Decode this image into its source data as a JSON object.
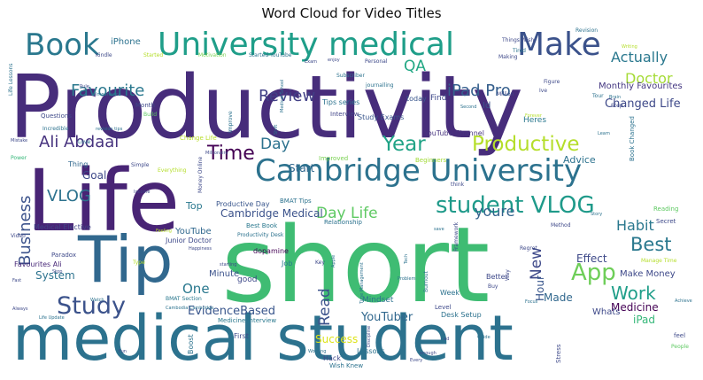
{
  "chart_data": {
    "type": "wordcloud",
    "title": "Word Cloud for Video Titles",
    "colormap": "viridis",
    "background": "#ffffff",
    "words": [
      {
        "text": "short",
        "weight": 100,
        "color": "#3fbc73"
      },
      {
        "text": "Productivity",
        "weight": 88,
        "color": "#472d7b"
      },
      {
        "text": "medical student",
        "weight": 66,
        "color": "#2c728e"
      },
      {
        "text": "Life",
        "weight": 66,
        "color": "#482475"
      },
      {
        "text": "Tip",
        "weight": 50,
        "color": "#31688e"
      },
      {
        "text": "University medical",
        "weight": 34,
        "color": "#1f9e89"
      },
      {
        "text": "Make",
        "weight": 34,
        "color": "#3b528b"
      },
      {
        "text": "Book",
        "weight": 33,
        "color": "#2a788e"
      },
      {
        "text": "Cambridge University",
        "weight": 34,
        "color": "#2c728e"
      },
      {
        "text": "student VLOG",
        "weight": 28,
        "color": "#1f9a8a"
      },
      {
        "text": "Study",
        "weight": 26,
        "color": "#3b528b"
      },
      {
        "text": "App",
        "weight": 25,
        "color": "#6ece58"
      },
      {
        "text": "Productive",
        "weight": 23,
        "color": "#b5de2b"
      },
      {
        "text": "Year",
        "weight": 23,
        "color": "#20a386"
      },
      {
        "text": "Time",
        "weight": 22,
        "color": "#440154"
      },
      {
        "text": "Best",
        "weight": 21,
        "color": "#2a788e"
      },
      {
        "text": "Work",
        "weight": 20,
        "color": "#1f9e89"
      },
      {
        "text": "Ali Abdaal",
        "weight": 18,
        "color": "#46327e"
      },
      {
        "text": "Business",
        "weight": 18,
        "color": "#3b528b"
      },
      {
        "text": "VLOG",
        "weight": 17,
        "color": "#2c728e"
      },
      {
        "text": "iPad Pro",
        "weight": 17,
        "color": "#355f8d"
      },
      {
        "text": "Favourite",
        "weight": 17,
        "color": "#2a788e"
      },
      {
        "text": "Review",
        "weight": 17,
        "color": "#424086"
      },
      {
        "text": "QA",
        "weight": 16,
        "color": "#22a884"
      },
      {
        "text": "Actually",
        "weight": 15,
        "color": "#2a788e"
      },
      {
        "text": "Doctor",
        "weight": 15,
        "color": "#a5db36"
      },
      {
        "text": "Habit",
        "weight": 16,
        "color": "#2a788e"
      },
      {
        "text": "Read",
        "weight": 17,
        "color": "#3b528b"
      },
      {
        "text": "New",
        "weight": 17,
        "color": "#3e4989"
      },
      {
        "text": "Day Life",
        "weight": 17,
        "color": "#5ec962"
      },
      {
        "text": "Day",
        "weight": 16,
        "color": "#2c728e"
      },
      {
        "text": "youre",
        "weight": 15,
        "color": "#33638d"
      },
      {
        "text": "One",
        "weight": 15,
        "color": "#2a788e"
      },
      {
        "text": "Changed Life",
        "weight": 13,
        "color": "#3e4989"
      },
      {
        "text": "Cambridge Medical",
        "weight": 12,
        "color": "#3b528b"
      },
      {
        "text": "EvidenceBased",
        "weight": 13,
        "color": "#39568c"
      },
      {
        "text": "YouTuber",
        "weight": 13,
        "color": "#31688e"
      },
      {
        "text": "Medicine",
        "weight": 12,
        "color": "#440154"
      },
      {
        "text": "Success",
        "weight": 12,
        "color": "#dde318"
      },
      {
        "text": "Effect",
        "weight": 12,
        "color": "#3e4989"
      },
      {
        "text": "Start",
        "weight": 12,
        "color": "#31688e"
      },
      {
        "text": "Goal",
        "weight": 12,
        "color": "#3e4989"
      },
      {
        "text": "System",
        "weight": 12,
        "color": "#2c728e"
      },
      {
        "text": "Hour",
        "weight": 12,
        "color": "#39568c"
      },
      {
        "text": "Made",
        "weight": 12,
        "color": "#31688e"
      },
      {
        "text": "iPad",
        "weight": 12,
        "color": "#35b779"
      },
      {
        "text": "Advice",
        "weight": 11,
        "color": "#2c728e"
      },
      {
        "text": "Monthly Favourites",
        "weight": 10,
        "color": "#453882"
      },
      {
        "text": "Make Money",
        "weight": 10,
        "color": "#3e4989"
      },
      {
        "text": "YouTube",
        "weight": 10,
        "color": "#31688e"
      },
      {
        "text": "Top",
        "weight": 11,
        "color": "#2a788e"
      },
      {
        "text": "Minute",
        "weight": 10,
        "color": "#3b528b"
      },
      {
        "text": "iPhone",
        "weight": 10,
        "color": "#2c728e"
      },
      {
        "text": "Tips series",
        "weight": 8,
        "color": "#2c728e"
      },
      {
        "text": "Study Exams",
        "weight": 8,
        "color": "#39568c"
      },
      {
        "text": "Interview",
        "weight": 7,
        "color": "#414487"
      },
      {
        "text": "YouTube Channel",
        "weight": 8,
        "color": "#46327e"
      },
      {
        "text": "Find",
        "weight": 9,
        "color": "#3e4989"
      },
      {
        "text": "Id",
        "weight": 10,
        "color": "#3b528b"
      },
      {
        "text": "Heres",
        "weight": 9,
        "color": "#2a788e"
      },
      {
        "text": "today",
        "weight": 8,
        "color": "#39568c"
      },
      {
        "text": "Thing",
        "weight": 8,
        "color": "#31688e"
      },
      {
        "text": "Improved",
        "weight": 7,
        "color": "#7ad151"
      },
      {
        "text": "Beginners",
        "weight": 7,
        "color": "#a2da37"
      },
      {
        "text": "Productive Day",
        "weight": 8,
        "color": "#39568c"
      },
      {
        "text": "BMAT Tips",
        "weight": 7,
        "color": "#2c728e"
      },
      {
        "text": "Best Book",
        "weight": 7,
        "color": "#2a788e"
      },
      {
        "text": "Productivity Desk",
        "weight": 6,
        "color": "#2c728e"
      },
      {
        "text": "Junior Doctor",
        "weight": 8,
        "color": "#3e4989"
      },
      {
        "text": "Medical Elective",
        "weight": 8,
        "color": "#414487"
      },
      {
        "text": "Paradox",
        "weight": 7,
        "color": "#3e4989"
      },
      {
        "text": "Favourites Ali",
        "weight": 8,
        "color": "#482878"
      },
      {
        "text": "Relationship",
        "weight": 7,
        "color": "#2c728e"
      },
      {
        "text": "dopamine",
        "weight": 8,
        "color": "#440154"
      },
      {
        "text": "Job",
        "weight": 8,
        "color": "#2a788e"
      },
      {
        "text": "good",
        "weight": 9,
        "color": "#3e4989"
      },
      {
        "text": "Mindset",
        "weight": 9,
        "color": "#2c728e"
      },
      {
        "text": "Desk Setup",
        "weight": 8,
        "color": "#2c728e"
      },
      {
        "text": "Whats",
        "weight": 10,
        "color": "#3e4989"
      },
      {
        "text": "Medicine Interview",
        "weight": 7,
        "color": "#2a788e"
      },
      {
        "text": "First",
        "weight": 8,
        "color": "#3e4989"
      },
      {
        "text": "Hack",
        "weight": 8,
        "color": "#3e4989"
      },
      {
        "text": "Lessons",
        "weight": 8,
        "color": "#2c728e"
      },
      {
        "text": "Wish Knew",
        "weight": 7,
        "color": "#2c728e"
      },
      {
        "text": "Boost",
        "weight": 8,
        "color": "#2c728e"
      },
      {
        "text": "BMAT Section",
        "weight": 6,
        "color": "#2a788e"
      },
      {
        "text": "Better",
        "weight": 8,
        "color": "#3e4989"
      },
      {
        "text": "Week",
        "weight": 8,
        "color": "#2c728e"
      },
      {
        "text": "Level",
        "weight": 7,
        "color": "#3e4989"
      },
      {
        "text": "Change Life",
        "weight": 7,
        "color": "#b8de29"
      },
      {
        "text": "Questions",
        "weight": 7,
        "color": "#3e4989"
      },
      {
        "text": "Incredible",
        "weight": 6,
        "color": "#2c728e"
      },
      {
        "text": "Book Changed",
        "weight": 7,
        "color": "#2c728e"
      },
      {
        "text": "Manage Time",
        "weight": 6,
        "color": "#b5de2b"
      },
      {
        "text": "Secret",
        "weight": 7,
        "color": "#3e4989"
      },
      {
        "text": "Reading",
        "weight": 7,
        "color": "#5ec962"
      },
      {
        "text": "feel",
        "weight": 7,
        "color": "#3e4989"
      },
      {
        "text": "People",
        "weight": 6,
        "color": "#5ec962"
      },
      {
        "text": "Stress",
        "weight": 7,
        "color": "#3e4989"
      },
      {
        "text": "Revision",
        "weight": 6,
        "color": "#2c728e"
      },
      {
        "text": "Things Wish",
        "weight": 6,
        "color": "#3e4989"
      },
      {
        "text": "Tired",
        "weight": 6,
        "color": "#2c728e"
      },
      {
        "text": "Kindle",
        "weight": 6,
        "color": "#3e4989"
      },
      {
        "text": "Started",
        "weight": 6,
        "color": "#b5de2b"
      },
      {
        "text": "Motivation",
        "weight": 6,
        "color": "#7ad151"
      },
      {
        "text": "Started YouTube",
        "weight": 6,
        "color": "#2c728e"
      },
      {
        "text": "Personal",
        "weight": 6,
        "color": "#3e4989"
      },
      {
        "text": "Making",
        "weight": 6,
        "color": "#3e4989"
      },
      {
        "text": "Subscriber",
        "weight": 6,
        "color": "#2c728e"
      },
      {
        "text": "journalling",
        "weight": 6,
        "color": "#2c728e"
      },
      {
        "text": "Million",
        "weight": 6,
        "color": "#3e4989"
      },
      {
        "text": "Month",
        "weight": 7,
        "color": "#3e4989"
      },
      {
        "text": "Importance",
        "weight": 5,
        "color": "#2c728e"
      },
      {
        "text": "Build",
        "weight": 6,
        "color": "#5ec962"
      },
      {
        "text": "Life Lessons",
        "weight": 6,
        "color": "#2c728e"
      },
      {
        "text": "Mistake",
        "weight": 5,
        "color": "#3e4989"
      },
      {
        "text": "Love",
        "weight": 6,
        "color": "#2c728e"
      },
      {
        "text": "Power",
        "weight": 6,
        "color": "#35b779"
      },
      {
        "text": "Simple",
        "weight": 6,
        "color": "#3e4989"
      },
      {
        "text": "Everything",
        "weight": 6,
        "color": "#b5de2b"
      },
      {
        "text": "Income",
        "weight": 5,
        "color": "#3e4989"
      },
      {
        "text": "Money Online",
        "weight": 6,
        "color": "#3e4989"
      },
      {
        "text": "Video",
        "weight": 6,
        "color": "#3e4989"
      },
      {
        "text": "Fast",
        "weight": 5,
        "color": "#3e4989"
      },
      {
        "text": "Always",
        "weight": 5,
        "color": "#3e4989"
      },
      {
        "text": "Life Update",
        "weight": 5,
        "color": "#2c728e"
      },
      {
        "text": "Watch",
        "weight": 5,
        "color": "#2c728e"
      },
      {
        "text": "Happiness",
        "weight": 5,
        "color": "#3e4989"
      },
      {
        "text": "Type",
        "weight": 6,
        "color": "#b5de2b"
      },
      {
        "text": "Millionaire",
        "weight": 5,
        "color": "#3e4989"
      },
      {
        "text": "Working",
        "weight": 5,
        "color": "#2c728e"
      },
      {
        "text": "Discipline",
        "weight": 5,
        "color": "#3e4989"
      },
      {
        "text": "Time Management",
        "weight": 5,
        "color": "#2c728e"
      },
      {
        "text": "Framework",
        "weight": 6,
        "color": "#3e4989"
      },
      {
        "text": "Burnout",
        "weight": 6,
        "color": "#2c728e"
      },
      {
        "text": "Apple",
        "weight": 5,
        "color": "#2c728e"
      },
      {
        "text": "Key",
        "weight": 6,
        "color": "#3e4989"
      },
      {
        "text": "Way",
        "weight": 6,
        "color": "#3e4989"
      },
      {
        "text": "Buy",
        "weight": 6,
        "color": "#3e4989"
      },
      {
        "text": "Regret",
        "weight": 6,
        "color": "#3e4989"
      },
      {
        "text": "Method",
        "weight": 6,
        "color": "#3e4989"
      },
      {
        "text": "Story",
        "weight": 5,
        "color": "#2c728e"
      },
      {
        "text": "Tour",
        "weight": 6,
        "color": "#2c728e"
      },
      {
        "text": "Brain",
        "weight": 5,
        "color": "#2c728e"
      },
      {
        "text": "Step",
        "weight": 6,
        "color": "#3e4989"
      },
      {
        "text": "Figure",
        "weight": 6,
        "color": "#3e4989"
      },
      {
        "text": "Ive",
        "weight": 6,
        "color": "#3e4989"
      },
      {
        "text": "Rule",
        "weight": 5,
        "color": "#3e4989"
      },
      {
        "text": "Learn",
        "weight": 5,
        "color": "#2c728e"
      },
      {
        "text": "Guide",
        "weight": 5,
        "color": "#2c728e"
      },
      {
        "text": "ad",
        "weight": 5,
        "color": "#3e4989"
      },
      {
        "text": "think",
        "weight": 6,
        "color": "#3e4989"
      },
      {
        "text": "save",
        "weight": 5,
        "color": "#2c728e"
      },
      {
        "text": "Second",
        "weight": 5,
        "color": "#2c728e"
      },
      {
        "text": "Exam",
        "weight": 5,
        "color": "#3e4989"
      },
      {
        "text": "enjoy",
        "weight": 5,
        "color": "#3e4989"
      },
      {
        "text": "Writing",
        "weight": 5,
        "color": "#b5de2b"
      },
      {
        "text": "Fun",
        "weight": 5,
        "color": "#3e4989"
      },
      {
        "text": "Stop",
        "weight": 5,
        "color": "#3e4989"
      },
      {
        "text": "Improve",
        "weight": 6,
        "color": "#2c728e"
      },
      {
        "text": "Shift",
        "weight": 5,
        "color": "#2c728e"
      },
      {
        "text": "Medical School",
        "weight": 5,
        "color": "#2c728e"
      },
      {
        "text": "Feeling",
        "weight": 5,
        "color": "#b5de2b"
      },
      {
        "text": "Focus",
        "weight": 5,
        "color": "#2c728e"
      },
      {
        "text": "Achieve",
        "weight": 5,
        "color": "#2c728e"
      },
      {
        "text": "Problem",
        "weight": 5,
        "color": "#2c728e"
      },
      {
        "text": "starting",
        "weight": 5,
        "color": "#3e4989"
      },
      {
        "text": "Every",
        "weight": 5,
        "color": "#3e4989"
      },
      {
        "text": "enough",
        "weight": 5,
        "color": "#3e4989"
      },
      {
        "text": "Tech",
        "weight": 5,
        "color": "#2c728e"
      },
      {
        "text": "revision tips",
        "weight": 5,
        "color": "#2c728e"
      },
      {
        "text": "Cambodia Cambridge",
        "weight": 5,
        "color": "#2c728e"
      },
      {
        "text": "Forever",
        "weight": 5,
        "color": "#b5de2b"
      }
    ]
  }
}
